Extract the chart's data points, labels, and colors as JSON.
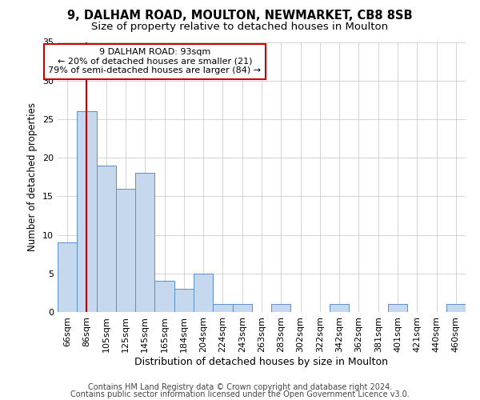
{
  "title_line1": "9, DALHAM ROAD, MOULTON, NEWMARKET, CB8 8SB",
  "title_line2": "Size of property relative to detached houses in Moulton",
  "xlabel": "Distribution of detached houses by size in Moulton",
  "ylabel": "Number of detached properties",
  "categories": [
    "66sqm",
    "86sqm",
    "105sqm",
    "125sqm",
    "145sqm",
    "165sqm",
    "184sqm",
    "204sqm",
    "224sqm",
    "243sqm",
    "263sqm",
    "283sqm",
    "302sqm",
    "322sqm",
    "342sqm",
    "362sqm",
    "381sqm",
    "401sqm",
    "421sqm",
    "440sqm",
    "460sqm"
  ],
  "values": [
    9,
    26,
    19,
    16,
    18,
    4,
    3,
    5,
    1,
    1,
    0,
    1,
    0,
    0,
    1,
    0,
    0,
    1,
    0,
    0,
    1
  ],
  "bar_color": "#c5d8ed",
  "bar_edge_color": "#5b8fc9",
  "vline_x": 1,
  "vline_color": "#cc0000",
  "annotation_text": "9 DALHAM ROAD: 93sqm\n← 20% of detached houses are smaller (21)\n79% of semi-detached houses are larger (84) →",
  "annotation_box_color": "#ffffff",
  "annotation_box_edge_color": "#cc0000",
  "ylim": [
    0,
    35
  ],
  "yticks": [
    0,
    5,
    10,
    15,
    20,
    25,
    30,
    35
  ],
  "background_color": "#ffffff",
  "plot_bg_color": "#ffffff",
  "grid_color": "#cccccc",
  "footer_line1": "Contains HM Land Registry data © Crown copyright and database right 2024.",
  "footer_line2": "Contains public sector information licensed under the Open Government Licence v3.0.",
  "title_fontsize": 10.5,
  "subtitle_fontsize": 9.5,
  "xlabel_fontsize": 9,
  "ylabel_fontsize": 8.5,
  "tick_fontsize": 8,
  "annotation_fontsize": 8,
  "footer_fontsize": 7
}
